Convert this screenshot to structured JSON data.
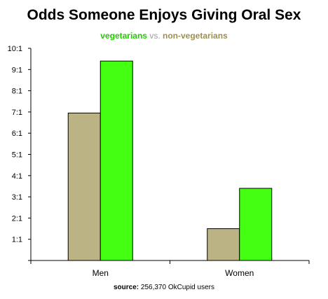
{
  "chart_data": {
    "type": "bar",
    "title": "Odds Someone Enjoys Giving Oral Sex",
    "subtitle": {
      "vegetarians": "vegetarians",
      "separator": "vs.",
      "non_vegetarians": "non-vegetarians"
    },
    "categories": [
      "Men",
      "Women"
    ],
    "series": [
      {
        "name": "non-vegetarians",
        "color": "#bcb385",
        "values": [
          6.95,
          1.5
        ]
      },
      {
        "name": "vegetarians",
        "color": "#44ff11",
        "values": [
          9.4,
          3.4
        ]
      }
    ],
    "ylim": [
      0,
      10
    ],
    "yticks": [
      {
        "value": 1,
        "label": "1:1"
      },
      {
        "value": 2,
        "label": "2:1"
      },
      {
        "value": 3,
        "label": "3:1"
      },
      {
        "value": 4,
        "label": "4:1"
      },
      {
        "value": 5,
        "label": "5:1"
      },
      {
        "value": 6,
        "label": "6:1"
      },
      {
        "value": 7,
        "label": "7:1"
      },
      {
        "value": 8,
        "label": "8:1"
      },
      {
        "value": 9,
        "label": "9:1"
      },
      {
        "value": 10,
        "label": "10:1"
      }
    ],
    "grid": false,
    "source_label": "source:",
    "source_text": "256,370 OkCupid users"
  }
}
